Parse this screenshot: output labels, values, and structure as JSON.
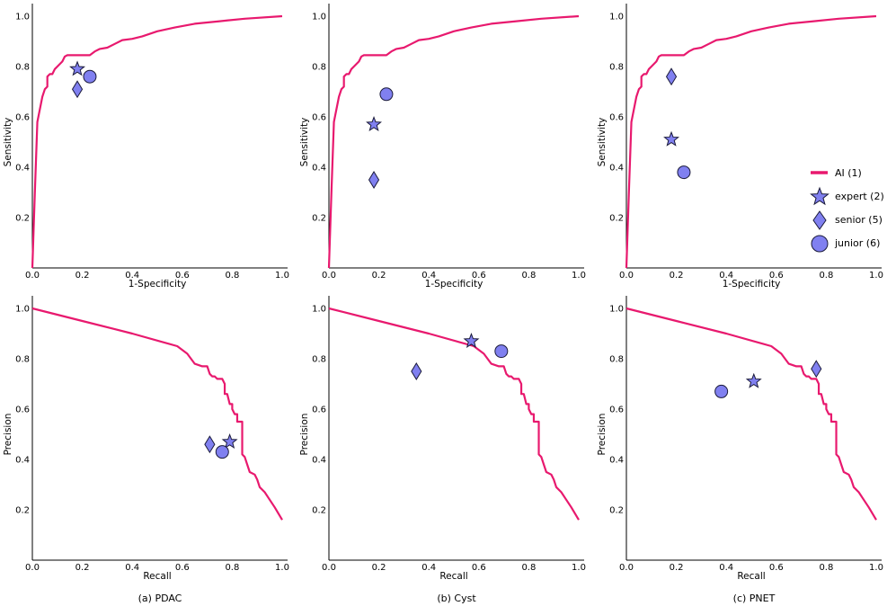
{
  "colors": {
    "curve": "#e8196e",
    "marker_fill": "#8080f0",
    "marker_stroke": "#1a1a3a"
  },
  "legend": {
    "items": [
      {
        "label": "AI (1)",
        "shape": "line"
      },
      {
        "label": "expert (2)",
        "shape": "star"
      },
      {
        "label": "senior (5)",
        "shape": "diamond"
      },
      {
        "label": "junior (6)",
        "shape": "circle"
      }
    ]
  },
  "chart_data": [
    {
      "type": "line",
      "panel": "roc",
      "caption": "(a) PDAC",
      "xlabel": "1-Specificity",
      "ylabel": "Sensitivity",
      "xlim": [
        0,
        1
      ],
      "ylim": [
        0,
        1
      ],
      "xticks": [
        "0.0",
        "0.2",
        "0.4",
        "0.6",
        "0.8",
        "1.0"
      ],
      "yticks": [
        "0.2",
        "0.4",
        "0.6",
        "0.8",
        "1.0"
      ],
      "curve": [
        [
          0,
          0
        ],
        [
          0.01,
          0.3
        ],
        [
          0.02,
          0.58
        ],
        [
          0.03,
          0.63
        ],
        [
          0.04,
          0.68
        ],
        [
          0.05,
          0.71
        ],
        [
          0.06,
          0.72
        ],
        [
          0.06,
          0.76
        ],
        [
          0.07,
          0.77
        ],
        [
          0.08,
          0.77
        ],
        [
          0.09,
          0.79
        ],
        [
          0.1,
          0.8
        ],
        [
          0.12,
          0.82
        ],
        [
          0.13,
          0.84
        ],
        [
          0.14,
          0.845
        ],
        [
          0.23,
          0.845
        ],
        [
          0.25,
          0.86
        ],
        [
          0.27,
          0.87
        ],
        [
          0.3,
          0.875
        ],
        [
          0.33,
          0.89
        ],
        [
          0.36,
          0.905
        ],
        [
          0.4,
          0.91
        ],
        [
          0.44,
          0.92
        ],
        [
          0.5,
          0.94
        ],
        [
          0.57,
          0.955
        ],
        [
          0.65,
          0.97
        ],
        [
          0.75,
          0.98
        ],
        [
          0.85,
          0.99
        ],
        [
          1,
          1
        ]
      ],
      "points": [
        {
          "rater": "expert",
          "x": 0.18,
          "y": 0.79
        },
        {
          "rater": "senior",
          "x": 0.18,
          "y": 0.71
        },
        {
          "rater": "junior",
          "x": 0.23,
          "y": 0.76
        }
      ]
    },
    {
      "type": "line",
      "panel": "roc",
      "caption": "(b) Cyst",
      "xlabel": "1-Specificity",
      "ylabel": "Sensitivity",
      "xlim": [
        0,
        1
      ],
      "ylim": [
        0,
        1
      ],
      "xticks": [
        "0.0",
        "0.2",
        "0.4",
        "0.6",
        "0.8",
        "1.0"
      ],
      "yticks": [
        "0.2",
        "0.4",
        "0.6",
        "0.8",
        "1.0"
      ],
      "curve": [
        [
          0,
          0
        ],
        [
          0.01,
          0.3
        ],
        [
          0.02,
          0.58
        ],
        [
          0.03,
          0.63
        ],
        [
          0.04,
          0.68
        ],
        [
          0.05,
          0.71
        ],
        [
          0.06,
          0.72
        ],
        [
          0.06,
          0.76
        ],
        [
          0.07,
          0.77
        ],
        [
          0.08,
          0.77
        ],
        [
          0.09,
          0.79
        ],
        [
          0.1,
          0.8
        ],
        [
          0.12,
          0.82
        ],
        [
          0.13,
          0.84
        ],
        [
          0.14,
          0.845
        ],
        [
          0.23,
          0.845
        ],
        [
          0.25,
          0.86
        ],
        [
          0.27,
          0.87
        ],
        [
          0.3,
          0.875
        ],
        [
          0.33,
          0.89
        ],
        [
          0.36,
          0.905
        ],
        [
          0.4,
          0.91
        ],
        [
          0.44,
          0.92
        ],
        [
          0.5,
          0.94
        ],
        [
          0.57,
          0.955
        ],
        [
          0.65,
          0.97
        ],
        [
          0.75,
          0.98
        ],
        [
          0.85,
          0.99
        ],
        [
          1,
          1
        ]
      ],
      "points": [
        {
          "rater": "expert",
          "x": 0.18,
          "y": 0.57
        },
        {
          "rater": "senior",
          "x": 0.18,
          "y": 0.35
        },
        {
          "rater": "junior",
          "x": 0.23,
          "y": 0.69
        }
      ]
    },
    {
      "type": "line",
      "panel": "roc",
      "caption": "(c) PNET",
      "xlabel": "1-Specificity",
      "ylabel": "Sensitivity",
      "xlim": [
        0,
        1
      ],
      "ylim": [
        0,
        1
      ],
      "xticks": [
        "0.0",
        "0.2",
        "0.4",
        "0.6",
        "0.8",
        "1.0"
      ],
      "yticks": [
        "0.2",
        "0.4",
        "0.6",
        "0.8",
        "1.0"
      ],
      "curve": [
        [
          0,
          0
        ],
        [
          0.01,
          0.3
        ],
        [
          0.02,
          0.58
        ],
        [
          0.03,
          0.63
        ],
        [
          0.04,
          0.68
        ],
        [
          0.05,
          0.71
        ],
        [
          0.06,
          0.72
        ],
        [
          0.06,
          0.76
        ],
        [
          0.07,
          0.77
        ],
        [
          0.08,
          0.77
        ],
        [
          0.09,
          0.79
        ],
        [
          0.1,
          0.8
        ],
        [
          0.12,
          0.82
        ],
        [
          0.13,
          0.84
        ],
        [
          0.14,
          0.845
        ],
        [
          0.23,
          0.845
        ],
        [
          0.25,
          0.86
        ],
        [
          0.27,
          0.87
        ],
        [
          0.3,
          0.875
        ],
        [
          0.33,
          0.89
        ],
        [
          0.36,
          0.905
        ],
        [
          0.4,
          0.91
        ],
        [
          0.44,
          0.92
        ],
        [
          0.5,
          0.94
        ],
        [
          0.57,
          0.955
        ],
        [
          0.65,
          0.97
        ],
        [
          0.75,
          0.98
        ],
        [
          0.85,
          0.99
        ],
        [
          1,
          1
        ]
      ],
      "points": [
        {
          "rater": "expert",
          "x": 0.18,
          "y": 0.51
        },
        {
          "rater": "senior",
          "x": 0.18,
          "y": 0.76
        },
        {
          "rater": "junior",
          "x": 0.23,
          "y": 0.38
        }
      ]
    },
    {
      "type": "line",
      "panel": "pr",
      "caption": "",
      "xlabel": "Recall",
      "ylabel": "Precision",
      "xlim": [
        0,
        1
      ],
      "ylim": [
        0,
        1
      ],
      "xticks": [
        "0.0",
        "0.2",
        "0.4",
        "0.6",
        "0.8",
        "1.0"
      ],
      "yticks": [
        "0.2",
        "0.4",
        "0.6",
        "0.8",
        "1.0"
      ],
      "curve": [
        [
          0,
          1
        ],
        [
          0.2,
          0.95
        ],
        [
          0.4,
          0.9
        ],
        [
          0.58,
          0.85
        ],
        [
          0.62,
          0.82
        ],
        [
          0.65,
          0.78
        ],
        [
          0.68,
          0.77
        ],
        [
          0.7,
          0.77
        ],
        [
          0.71,
          0.74
        ],
        [
          0.72,
          0.73
        ],
        [
          0.73,
          0.73
        ],
        [
          0.74,
          0.72
        ],
        [
          0.76,
          0.72
        ],
        [
          0.77,
          0.7
        ],
        [
          0.77,
          0.66
        ],
        [
          0.78,
          0.66
        ],
        [
          0.79,
          0.62
        ],
        [
          0.8,
          0.62
        ],
        [
          0.8,
          0.6
        ],
        [
          0.81,
          0.58
        ],
        [
          0.82,
          0.58
        ],
        [
          0.82,
          0.55
        ],
        [
          0.84,
          0.55
        ],
        [
          0.84,
          0.42
        ],
        [
          0.85,
          0.41
        ],
        [
          0.86,
          0.38
        ],
        [
          0.87,
          0.35
        ],
        [
          0.89,
          0.34
        ],
        [
          0.9,
          0.32
        ],
        [
          0.91,
          0.29
        ],
        [
          0.93,
          0.27
        ],
        [
          0.95,
          0.24
        ],
        [
          0.97,
          0.21
        ],
        [
          1,
          0.16
        ]
      ],
      "points": [
        {
          "rater": "expert",
          "x": 0.79,
          "y": 0.47
        },
        {
          "rater": "senior",
          "x": 0.71,
          "y": 0.46
        },
        {
          "rater": "junior",
          "x": 0.76,
          "y": 0.43
        }
      ]
    },
    {
      "type": "line",
      "panel": "pr",
      "caption": "",
      "xlabel": "Recall",
      "ylabel": "Precision",
      "xlim": [
        0,
        1
      ],
      "ylim": [
        0,
        1
      ],
      "xticks": [
        "0.0",
        "0.2",
        "0.4",
        "0.6",
        "0.8",
        "1.0"
      ],
      "yticks": [
        "0.2",
        "0.4",
        "0.6",
        "0.8",
        "1.0"
      ],
      "curve": [
        [
          0,
          1
        ],
        [
          0.2,
          0.95
        ],
        [
          0.4,
          0.9
        ],
        [
          0.58,
          0.85
        ],
        [
          0.62,
          0.82
        ],
        [
          0.65,
          0.78
        ],
        [
          0.68,
          0.77
        ],
        [
          0.7,
          0.77
        ],
        [
          0.71,
          0.74
        ],
        [
          0.72,
          0.73
        ],
        [
          0.73,
          0.73
        ],
        [
          0.74,
          0.72
        ],
        [
          0.76,
          0.72
        ],
        [
          0.77,
          0.7
        ],
        [
          0.77,
          0.66
        ],
        [
          0.78,
          0.66
        ],
        [
          0.79,
          0.62
        ],
        [
          0.8,
          0.62
        ],
        [
          0.8,
          0.6
        ],
        [
          0.81,
          0.58
        ],
        [
          0.82,
          0.58
        ],
        [
          0.82,
          0.55
        ],
        [
          0.84,
          0.55
        ],
        [
          0.84,
          0.42
        ],
        [
          0.85,
          0.41
        ],
        [
          0.86,
          0.38
        ],
        [
          0.87,
          0.35
        ],
        [
          0.89,
          0.34
        ],
        [
          0.9,
          0.32
        ],
        [
          0.91,
          0.29
        ],
        [
          0.93,
          0.27
        ],
        [
          0.95,
          0.24
        ],
        [
          0.97,
          0.21
        ],
        [
          1,
          0.16
        ]
      ],
      "points": [
        {
          "rater": "expert",
          "x": 0.57,
          "y": 0.87
        },
        {
          "rater": "senior",
          "x": 0.35,
          "y": 0.75
        },
        {
          "rater": "junior",
          "x": 0.69,
          "y": 0.83
        }
      ]
    },
    {
      "type": "line",
      "panel": "pr",
      "caption": "",
      "xlabel": "Recall",
      "ylabel": "Precision",
      "xlim": [
        0,
        1
      ],
      "ylim": [
        0,
        1
      ],
      "xticks": [
        "0.0",
        "0.2",
        "0.4",
        "0.6",
        "0.8",
        "1.0"
      ],
      "yticks": [
        "0.2",
        "0.4",
        "0.6",
        "0.8",
        "1.0"
      ],
      "curve": [
        [
          0,
          1
        ],
        [
          0.2,
          0.95
        ],
        [
          0.4,
          0.9
        ],
        [
          0.58,
          0.85
        ],
        [
          0.62,
          0.82
        ],
        [
          0.65,
          0.78
        ],
        [
          0.68,
          0.77
        ],
        [
          0.7,
          0.77
        ],
        [
          0.71,
          0.74
        ],
        [
          0.72,
          0.73
        ],
        [
          0.73,
          0.73
        ],
        [
          0.74,
          0.72
        ],
        [
          0.76,
          0.72
        ],
        [
          0.77,
          0.7
        ],
        [
          0.77,
          0.66
        ],
        [
          0.78,
          0.66
        ],
        [
          0.79,
          0.62
        ],
        [
          0.8,
          0.62
        ],
        [
          0.8,
          0.6
        ],
        [
          0.81,
          0.58
        ],
        [
          0.82,
          0.58
        ],
        [
          0.82,
          0.55
        ],
        [
          0.84,
          0.55
        ],
        [
          0.84,
          0.42
        ],
        [
          0.85,
          0.41
        ],
        [
          0.86,
          0.38
        ],
        [
          0.87,
          0.35
        ],
        [
          0.89,
          0.34
        ],
        [
          0.9,
          0.32
        ],
        [
          0.91,
          0.29
        ],
        [
          0.93,
          0.27
        ],
        [
          0.95,
          0.24
        ],
        [
          0.97,
          0.21
        ],
        [
          1,
          0.16
        ]
      ],
      "points": [
        {
          "rater": "expert",
          "x": 0.51,
          "y": 0.71
        },
        {
          "rater": "senior",
          "x": 0.76,
          "y": 0.76
        },
        {
          "rater": "junior",
          "x": 0.38,
          "y": 0.67
        }
      ]
    }
  ]
}
